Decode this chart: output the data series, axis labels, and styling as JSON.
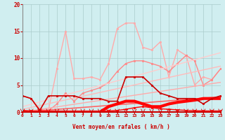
{
  "xlabel": "Vent moyen/en rafales ( km/h )",
  "xlim": [
    0,
    23
  ],
  "ylim": [
    0,
    20
  ],
  "yticks": [
    0,
    5,
    10,
    15,
    20
  ],
  "xticks": [
    0,
    1,
    2,
    3,
    4,
    5,
    6,
    7,
    8,
    9,
    10,
    11,
    12,
    13,
    14,
    15,
    16,
    17,
    18,
    19,
    20,
    21,
    22,
    23
  ],
  "bg_color": "#d0eef0",
  "grid_color": "#aacccc",
  "lines": [
    {
      "x": [
        0,
        1,
        2,
        3,
        4,
        5,
        6,
        7,
        8,
        9,
        10,
        11,
        12,
        13,
        14,
        15,
        16,
        17,
        18,
        19,
        20,
        21,
        22,
        23
      ],
      "y": [
        3.0,
        2.5,
        0.5,
        0.2,
        8.0,
        15.0,
        6.2,
        6.2,
        6.5,
        6.0,
        9.0,
        15.5,
        16.5,
        16.5,
        12.0,
        11.5,
        13.0,
        6.5,
        11.5,
        10.5,
        5.0,
        6.5,
        6.0,
        8.0
      ],
      "color": "#ffaaaa",
      "lw": 1.0,
      "marker": "s",
      "ms": 2.0
    },
    {
      "x": [
        0,
        1,
        2,
        3,
        4,
        5,
        6,
        7,
        8,
        9,
        10,
        11,
        12,
        13,
        14,
        15,
        16,
        17,
        18,
        19,
        20,
        21,
        22,
        23
      ],
      "y": [
        3.0,
        2.5,
        0.5,
        0.2,
        1.5,
        3.5,
        2.0,
        3.5,
        4.0,
        4.5,
        5.5,
        7.5,
        9.0,
        9.5,
        9.5,
        9.0,
        8.5,
        7.5,
        9.0,
        10.5,
        9.5,
        5.0,
        6.0,
        8.0
      ],
      "color": "#ff8888",
      "lw": 1.0,
      "marker": "s",
      "ms": 2.0
    },
    {
      "x": [
        0,
        23
      ],
      "y": [
        1.0,
        11.0
      ],
      "color": "#ffcccc",
      "lw": 1.0,
      "marker": null,
      "ms": 0
    },
    {
      "x": [
        0,
        23
      ],
      "y": [
        0.5,
        8.5
      ],
      "color": "#ffbbbb",
      "lw": 1.0,
      "marker": null,
      "ms": 0
    },
    {
      "x": [
        0,
        23
      ],
      "y": [
        0.0,
        5.5
      ],
      "color": "#ffaaaa",
      "lw": 1.0,
      "marker": null,
      "ms": 0
    },
    {
      "x": [
        0,
        23
      ],
      "y": [
        0.0,
        2.8
      ],
      "color": "#ff6666",
      "lw": 1.2,
      "marker": null,
      "ms": 0
    },
    {
      "x": [
        0,
        1,
        2,
        3,
        4,
        5,
        6,
        7,
        8,
        9,
        10,
        11,
        12,
        13,
        14,
        15,
        16,
        17,
        18,
        19,
        20,
        21,
        22,
        23
      ],
      "y": [
        0.0,
        0.0,
        0.0,
        0.0,
        0.0,
        0.0,
        0.0,
        0.0,
        0.0,
        0.0,
        1.0,
        1.5,
        2.0,
        2.0,
        1.5,
        1.0,
        1.0,
        1.5,
        1.8,
        2.0,
        2.2,
        2.5,
        2.5,
        2.5
      ],
      "color": "#ff0000",
      "lw": 3.0,
      "marker": null,
      "ms": 0
    },
    {
      "x": [
        0,
        1,
        2,
        3,
        4,
        5,
        6,
        7,
        8,
        9,
        10,
        11,
        12,
        13,
        14,
        15,
        16,
        17,
        18,
        19,
        20,
        21,
        22,
        23
      ],
      "y": [
        3.0,
        2.5,
        0.3,
        3.0,
        3.0,
        3.0,
        3.0,
        2.5,
        2.5,
        2.5,
        2.0,
        2.0,
        6.5,
        6.5,
        6.5,
        5.0,
        3.5,
        3.0,
        2.5,
        2.5,
        2.5,
        1.5,
        2.5,
        3.0
      ],
      "color": "#cc0000",
      "lw": 1.2,
      "marker": "s",
      "ms": 2.0
    },
    {
      "x": [
        0,
        1,
        2,
        3,
        4,
        5,
        6,
        7,
        8,
        9,
        10,
        11,
        12,
        13,
        14,
        15,
        16,
        17,
        18,
        19,
        20,
        21,
        22,
        23
      ],
      "y": [
        0.3,
        0.2,
        0.1,
        0.05,
        0.05,
        0.1,
        0.05,
        0.05,
        0.05,
        0.1,
        0.2,
        0.3,
        0.5,
        0.8,
        1.0,
        0.8,
        0.6,
        0.5,
        0.4,
        0.3,
        0.25,
        0.2,
        0.2,
        0.2
      ],
      "color": "#ff0000",
      "lw": 1.0,
      "marker": "s",
      "ms": 1.5
    }
  ]
}
